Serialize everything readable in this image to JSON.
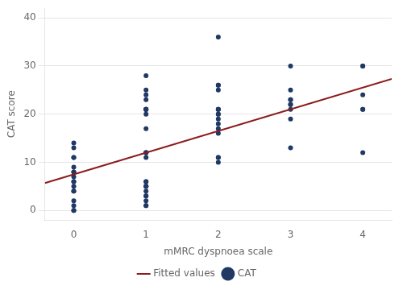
{
  "chart_data": {
    "type": "scatter",
    "xlabel": "mMRC dyspnoea scale",
    "ylabel": "CAT score",
    "xlim": [
      -0.4,
      4.4
    ],
    "ylim": [
      -2,
      42
    ],
    "xticks": [
      0,
      1,
      2,
      3,
      4
    ],
    "yticks": [
      0,
      10,
      20,
      30,
      40
    ],
    "grid": "y",
    "legend": "bottom",
    "series": [
      {
        "name": "CAT",
        "type": "scatter",
        "marker": "circle",
        "color": "#1f3864",
        "x": [
          0,
          0,
          0,
          0,
          0,
          0,
          0,
          0,
          0,
          0,
          0,
          0,
          0,
          0,
          0,
          0,
          0,
          1,
          1,
          1,
          1,
          1,
          1,
          1,
          1,
          1,
          1,
          1,
          1,
          1,
          1,
          1,
          1,
          1,
          1,
          1,
          1,
          1,
          1,
          1,
          1,
          1,
          1,
          2,
          2,
          2,
          2,
          2,
          2,
          2,
          2,
          2,
          2,
          2,
          2,
          2,
          2,
          2,
          2,
          3,
          3,
          3,
          3,
          3,
          3,
          3,
          3,
          3,
          4,
          4,
          4,
          4,
          4,
          4
        ],
        "values": [
          0,
          0,
          1,
          2,
          4,
          4,
          5,
          6,
          6,
          7,
          8,
          8,
          9,
          11,
          11,
          13,
          14,
          1,
          1,
          2,
          3,
          3,
          4,
          5,
          5,
          5,
          6,
          6,
          11,
          12,
          12,
          12,
          17,
          20,
          21,
          21,
          21,
          21,
          21,
          23,
          24,
          25,
          28,
          10,
          11,
          11,
          16,
          17,
          18,
          19,
          20,
          20,
          21,
          21,
          21,
          25,
          26,
          26,
          36,
          13,
          19,
          21,
          22,
          22,
          23,
          23,
          25,
          30,
          12,
          21,
          21,
          24,
          30,
          30
        ]
      },
      {
        "name": "Fitted values",
        "type": "line",
        "line_style": "solid",
        "color": "#8b1c1c",
        "x": [
          -0.4,
          4.4
        ],
        "values": [
          5.7,
          27.3
        ]
      }
    ]
  }
}
